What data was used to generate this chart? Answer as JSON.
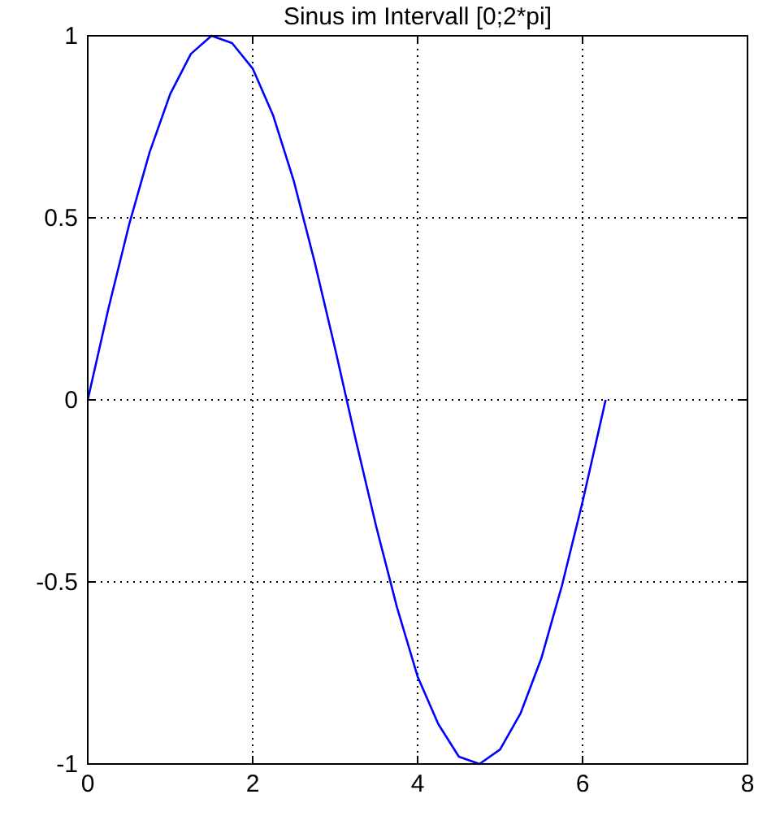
{
  "chart_data": {
    "type": "line",
    "title": "Sinus im Intervall [0;2*pi]",
    "x": [
      0,
      0.25,
      0.5,
      0.75,
      1,
      1.25,
      1.5,
      1.75,
      2,
      2.25,
      2.5,
      2.75,
      3,
      3.25,
      3.5,
      3.75,
      4,
      4.25,
      4.5,
      4.75,
      5,
      5.25,
      5.5,
      5.75,
      6,
      6.28
    ],
    "series": [
      {
        "color": "#0000ff",
        "values": [
          0,
          0.25,
          0.48,
          0.68,
          0.84,
          0.95,
          1.0,
          0.98,
          0.91,
          0.78,
          0.6,
          0.38,
          0.14,
          -0.11,
          -0.35,
          -0.57,
          -0.76,
          -0.89,
          -0.98,
          -1.0,
          -0.96,
          -0.86,
          -0.71,
          -0.51,
          -0.28,
          0
        ]
      }
    ],
    "xlim": [
      0,
      8
    ],
    "xticks": [
      0,
      2,
      4,
      6,
      8
    ],
    "ylim": [
      -1,
      1
    ],
    "yticks": [
      -1,
      -0.5,
      0,
      0.5,
      1
    ],
    "grid": true,
    "line_style": "solid",
    "marker": "none"
  }
}
